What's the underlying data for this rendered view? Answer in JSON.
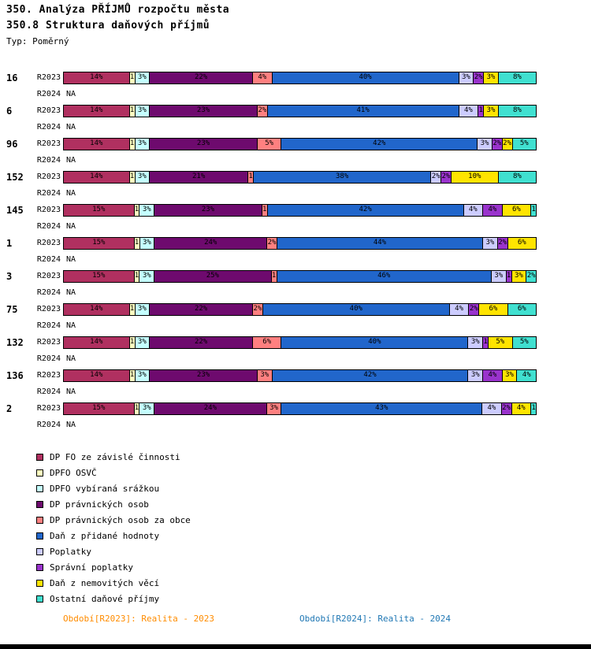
{
  "header": {
    "title": "350. Analýza PŘÍJMŮ rozpočtu města",
    "subtitle": "350.8 Struktura daňových příjmů",
    "type_label": "Typ: Poměrný"
  },
  "chart_data": {
    "type": "bar",
    "orientation": "horizontal",
    "stacked": true,
    "unit": "%",
    "xlim": [
      0,
      100
    ],
    "grid": false,
    "legend_position": "bottom-left",
    "period_labels": [
      "R2023",
      "R2024"
    ],
    "na_label": "NA",
    "series": [
      {
        "name": "DP FO ze závislé činnosti",
        "color": "#B03060"
      },
      {
        "name": "DPFO OSVČ",
        "color": "#FFFFC0"
      },
      {
        "name": "DPFO vybíraná srážkou",
        "color": "#C4FFFF"
      },
      {
        "name": "DP právnických osob",
        "color": "#6E0A6E"
      },
      {
        "name": "DP právnických osob za obce",
        "color": "#FF8080"
      },
      {
        "name": "Daň z přidané hodnoty",
        "color": "#2166CB"
      },
      {
        "name": "Poplatky",
        "color": "#CCCCFF"
      },
      {
        "name": "Správní poplatky",
        "color": "#9933CC"
      },
      {
        "name": "Daň z nemovitých věcí",
        "color": "#FFE400"
      },
      {
        "name": "Ostatní daňové příjmy",
        "color": "#40E0D0"
      }
    ],
    "rows": [
      {
        "label": "16",
        "r2023": [
          14,
          1,
          3,
          22,
          4,
          40,
          3,
          2,
          3,
          8
        ],
        "r2024": null
      },
      {
        "label": "6",
        "r2023": [
          14,
          1,
          3,
          23,
          2,
          41,
          4,
          1,
          3,
          8
        ],
        "r2024": null
      },
      {
        "label": "96",
        "r2023": [
          14,
          1,
          3,
          23,
          5,
          42,
          3,
          2,
          2,
          5
        ],
        "r2024": null
      },
      {
        "label": "152",
        "r2023": [
          14,
          1,
          3,
          21,
          1,
          38,
          2,
          2,
          10,
          8
        ],
        "r2024": null
      },
      {
        "label": "145",
        "r2023": [
          15,
          1,
          3,
          23,
          1,
          42,
          4,
          4,
          6,
          1
        ],
        "r2024": null
      },
      {
        "label": "1",
        "r2023": [
          15,
          1,
          3,
          24,
          2,
          44,
          3,
          2,
          6,
          0
        ],
        "r2024": null
      },
      {
        "label": "3",
        "r2023": [
          15,
          1,
          3,
          25,
          1,
          46,
          3,
          1,
          3,
          2
        ],
        "r2024": null
      },
      {
        "label": "75",
        "r2023": [
          14,
          1,
          3,
          22,
          2,
          40,
          4,
          2,
          6,
          6
        ],
        "r2024": null
      },
      {
        "label": "132",
        "r2023": [
          14,
          1,
          3,
          22,
          6,
          40,
          3,
          1,
          5,
          5
        ],
        "r2024": null
      },
      {
        "label": "136",
        "r2023": [
          14,
          1,
          3,
          23,
          3,
          42,
          3,
          4,
          3,
          4
        ],
        "r2024": null
      },
      {
        "label": "2",
        "r2023": [
          15,
          1,
          3,
          24,
          3,
          43,
          4,
          2,
          4,
          1
        ],
        "r2024": null
      }
    ]
  },
  "footer": {
    "left": "Období[R2023]: Realita - 2023",
    "left_color": "#FF8C00",
    "right": "Období[R2024]: Realita - 2024",
    "right_color": "#1F77B4"
  }
}
